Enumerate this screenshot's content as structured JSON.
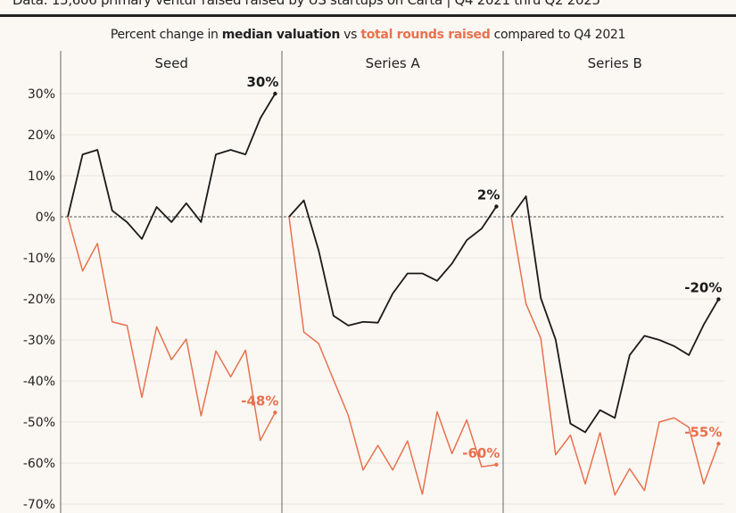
{
  "header": {
    "note": "Data: 15,606 primary ventur raised raised by US startups on Carta | Q4 2021 thru Q2 2025",
    "subtitle_prefix": "Percent change in ",
    "subtitle_bold": "median valuation",
    "subtitle_mid": " vs ",
    "subtitle_orange": "total rounds raised",
    "subtitle_suffix": " compared to Q4 2021"
  },
  "colors": {
    "valuation": "#1a1a1a",
    "rounds": "#e8714f",
    "background": "#fbf8f3",
    "grid": "#e9e5de"
  },
  "chart_data": {
    "type": "line",
    "ylim": [
      -70,
      30
    ],
    "yticks": [
      "30%",
      "20%",
      "10%",
      "0%",
      "-10%",
      "-20%",
      "-30%",
      "-40%",
      "-50%",
      "-60%",
      "-70%"
    ],
    "ytick_values": [
      30,
      20,
      10,
      0,
      -10,
      -20,
      -30,
      -40,
      -50,
      -60,
      -70
    ],
    "grid": true,
    "zero_line": "dashed",
    "panels": [
      {
        "title": "Seed",
        "series": [
          {
            "key": "valuation",
            "values": [
              0,
              15.2,
              16.3,
              1.5,
              -1.3,
              -5.4,
              2.4,
              -1.3,
              3.3,
              -1.3,
              15.2,
              16.3,
              15.2,
              24,
              30
            ],
            "end_label": "30%"
          },
          {
            "key": "rounds",
            "values": [
              0,
              -13.2,
              -6.5,
              -25.6,
              -26.5,
              -44,
              -26.8,
              -34.8,
              -29.8,
              -48.5,
              -32.7,
              -39,
              -32.5,
              -54.5,
              -47.7
            ],
            "end_label": "-48%"
          }
        ]
      },
      {
        "title": "Series A",
        "series": [
          {
            "key": "valuation",
            "values": [
              0,
              4,
              -8.2,
              -24.1,
              -26.5,
              -25.6,
              -25.8,
              -18.7,
              -13.8,
              -13.8,
              -15.6,
              -11.4,
              -5.7,
              -2.9,
              2.5
            ],
            "end_label": "2%"
          },
          {
            "key": "rounds",
            "values": [
              0,
              -28.1,
              -30.9,
              -39.7,
              -48.4,
              -61.7,
              -55.7,
              -61.7,
              -54.6,
              -67.6,
              -47.5,
              -57.7,
              -49.5,
              -60.9,
              -60.4
            ],
            "end_label": "-60%"
          }
        ]
      },
      {
        "title": "Series B",
        "series": [
          {
            "key": "valuation",
            "values": [
              0,
              5,
              -19.8,
              -29.9,
              -50.4,
              -52.5,
              -47.1,
              -49,
              -33.7,
              -29,
              -30,
              -31.5,
              -33.7,
              -26.3,
              -20.1
            ],
            "end_label": "-20%"
          },
          {
            "key": "rounds",
            "values": [
              0,
              -21.2,
              -29.6,
              -58,
              -53.2,
              -65.1,
              -52.6,
              -67.8,
              -61.4,
              -66.7,
              -50,
              -49,
              -51.3,
              -65.1,
              -55.3
            ],
            "end_label": "-55%"
          }
        ]
      }
    ]
  }
}
